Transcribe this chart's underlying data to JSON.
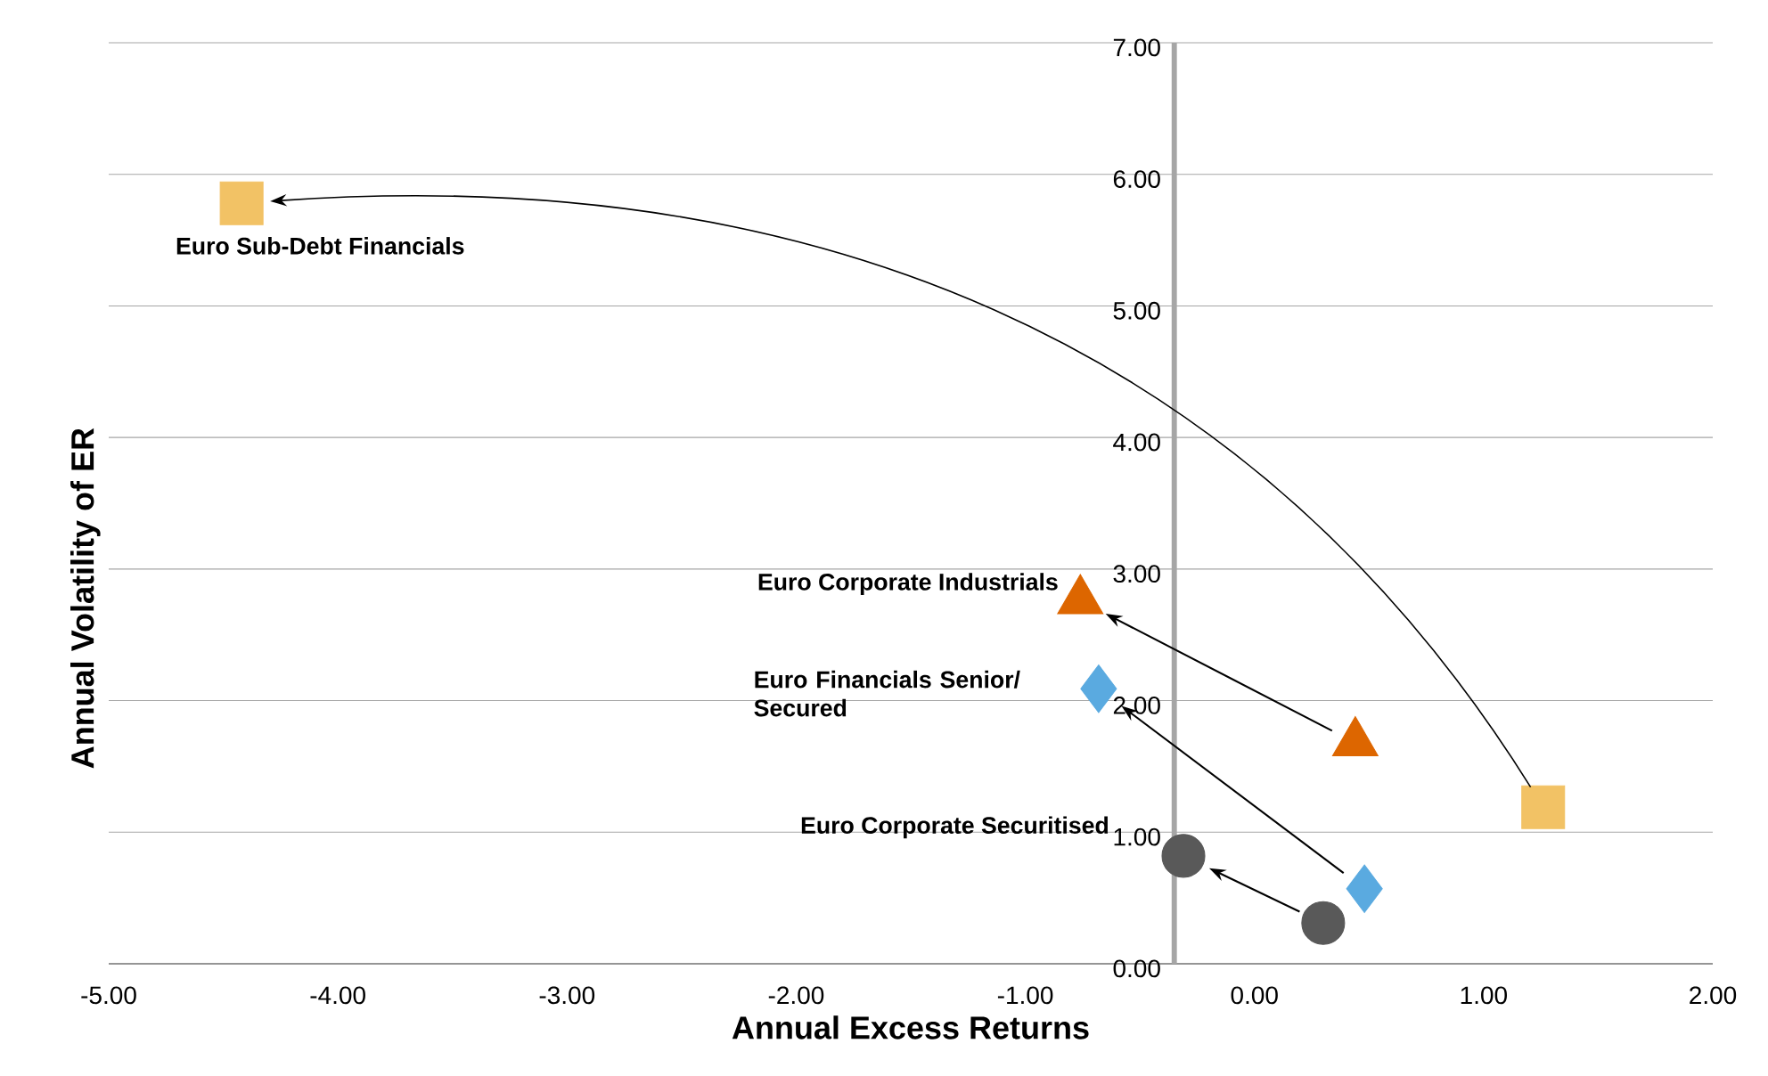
{
  "chart_data": {
    "type": "scatter",
    "xlabel": "Annual Excess Returns",
    "ylabel": "Annual Volatility of ER",
    "xlim": [
      -5,
      2
    ],
    "xticks": [
      {
        "value": -5,
        "label": "-5.00"
      },
      {
        "value": -4,
        "label": "-4.00"
      },
      {
        "value": -3,
        "label": "-3.00"
      },
      {
        "value": -2,
        "label": "-2.00"
      },
      {
        "value": -1,
        "label": "-1.00"
      },
      {
        "value": 0,
        "label": "0.00"
      },
      {
        "value": 1,
        "label": "1.00"
      },
      {
        "value": 2,
        "label": "2.00"
      }
    ],
    "ylim": [
      0,
      7
    ],
    "yticks": [
      {
        "value": 0,
        "label": "0.00"
      },
      {
        "value": 1,
        "label": "1.00"
      },
      {
        "value": 2,
        "label": "2.00"
      },
      {
        "value": 3,
        "label": "3.00"
      },
      {
        "value": 4,
        "label": "4.00"
      },
      {
        "value": 5,
        "label": "5.00"
      },
      {
        "value": 6,
        "label": "6.00"
      },
      {
        "value": 7,
        "label": "7.00"
      }
    ],
    "grid": "y",
    "series": [
      {
        "name": "Euro Sub-Debt Financials",
        "color": "#f2c265",
        "marker": "square",
        "x": [
          -4.42,
          1.26
        ],
        "values": [
          5.78,
          1.19
        ]
      },
      {
        "name": "Euro Corporate Industrials",
        "color": "#dd6600",
        "marker": "triangle",
        "x": [
          -0.76,
          0.44
        ],
        "values": [
          2.76,
          1.68
        ]
      },
      {
        "name": "Euro Financials Senior/ Secured",
        "color": "#5aaae0",
        "marker": "diamond",
        "x": [
          -0.68,
          0.48
        ],
        "values": [
          2.09,
          0.57
        ]
      },
      {
        "name": "Euro Corporate Securitised",
        "color": "#595959",
        "marker": "circle",
        "x": [
          -0.31,
          0.3
        ],
        "values": [
          0.82,
          0.31
        ]
      }
    ]
  }
}
